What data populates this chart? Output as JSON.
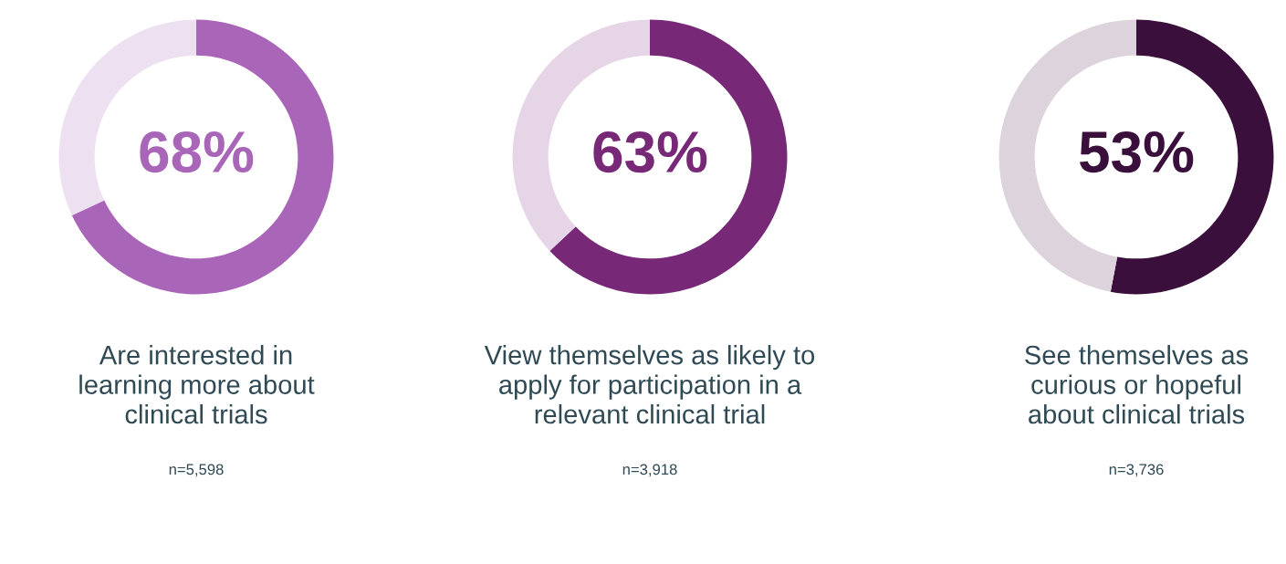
{
  "chart_data": [
    {
      "type": "donut",
      "title": "Are interested in learning more about clinical trials",
      "categories": [
        null,
        null
      ],
      "values": [
        68,
        32
      ],
      "colors": [
        "#a966b9",
        "#ede0f0"
      ],
      "value_labels": [
        "68%",
        null
      ],
      "annotations": [
        "n=5,598"
      ]
    },
    {
      "type": "donut",
      "title": "View themselves as likely to apply for participation in a relevant clinical trial",
      "categories": [
        null,
        null
      ],
      "values": [
        63,
        37
      ],
      "colors": [
        "#772877",
        "#e6d5e6"
      ],
      "value_labels": [
        "63%",
        null
      ],
      "annotations": [
        "n=3,918"
      ]
    },
    {
      "type": "donut",
      "title": "See themselves as curious or hopeful about clinical trials",
      "categories": [
        null,
        null
      ],
      "values": [
        53,
        47
      ],
      "colors": [
        "#3b0f3b",
        "#ddd3dc"
      ],
      "value_labels": [
        "53%",
        null
      ],
      "annotations": [
        "n=3,736"
      ]
    }
  ]
}
